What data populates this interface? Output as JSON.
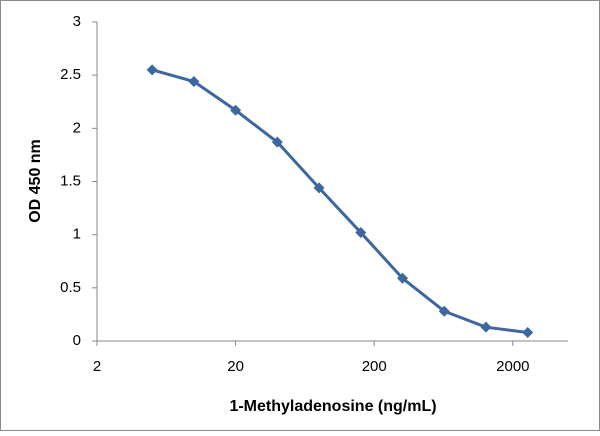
{
  "chart_data": {
    "type": "line",
    "x_label": "1-Methyladenosine (ng/mL)",
    "y_label": "OD 450 nm",
    "x": [
      5,
      10,
      20,
      40,
      80,
      160,
      320,
      640,
      1280,
      2560
    ],
    "series": [
      {
        "name": "OD 450 nm",
        "color": "#3c679f",
        "values": [
          2.55,
          2.44,
          2.17,
          1.87,
          1.44,
          1.02,
          0.59,
          0.28,
          0.13,
          0.08
        ]
      }
    ],
    "x_log": true,
    "xlim": [
      2,
      5000
    ],
    "xticks": [
      2,
      20,
      200,
      2000
    ],
    "ylim": [
      0,
      3
    ],
    "yticks": [
      0,
      0.5,
      1,
      1.5,
      2,
      2.5,
      3
    ],
    "grid": false,
    "legend": false
  }
}
